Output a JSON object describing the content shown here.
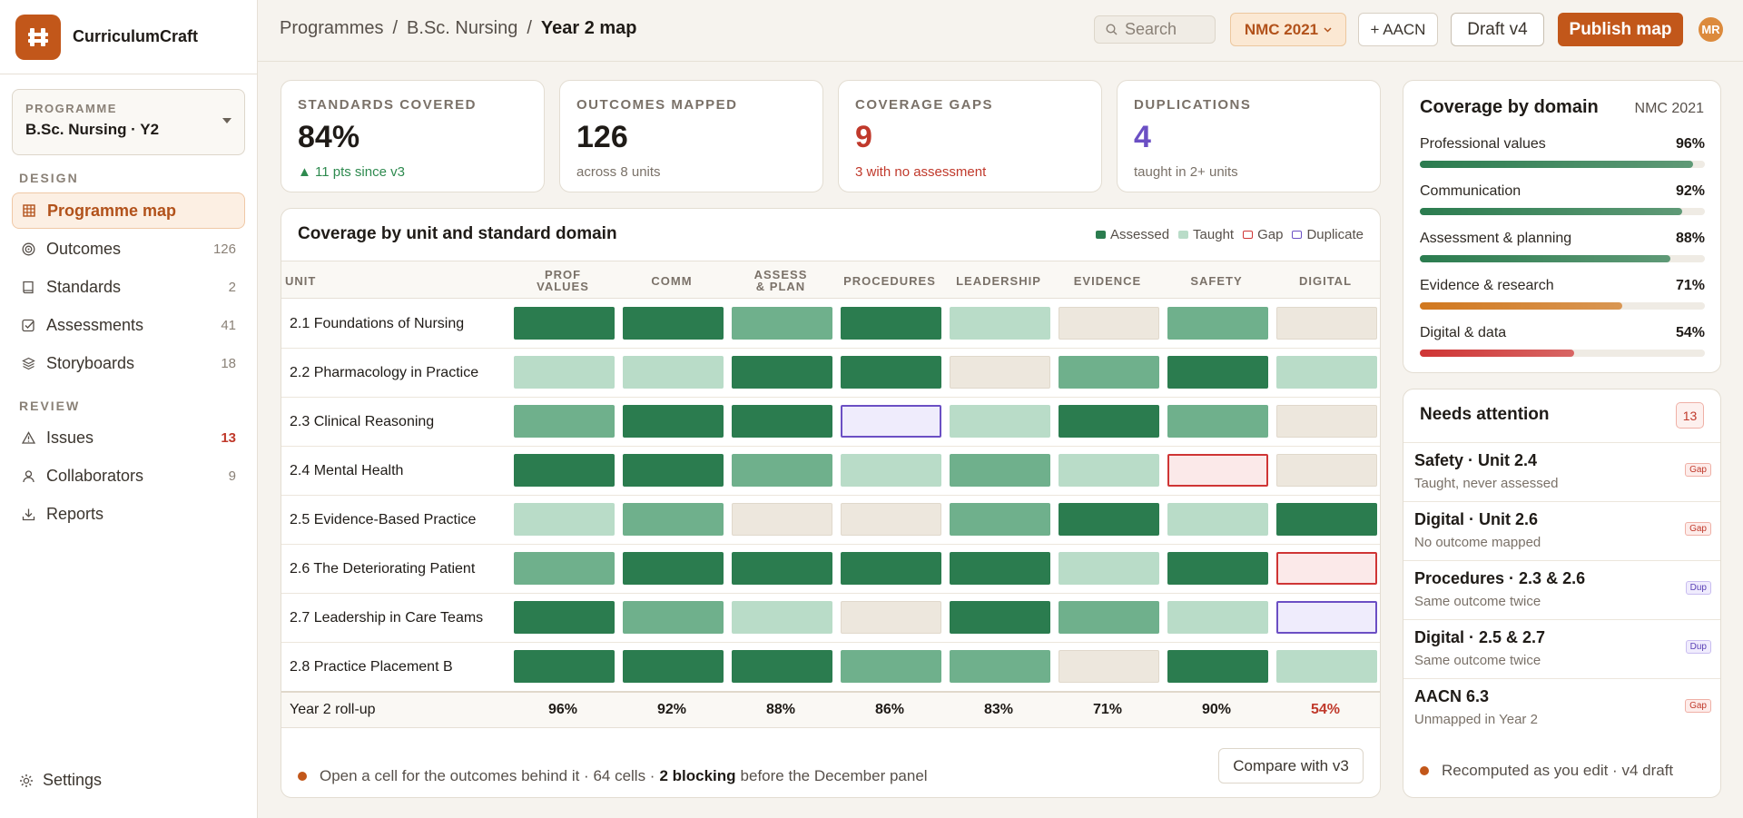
{
  "app": {
    "name": "CurriculumCraft"
  },
  "sidebar": {
    "programme_label": "PROGRAMME",
    "programme_value": "B.Sc. Nursing · Y2",
    "design_label": "DESIGN",
    "review_label": "REVIEW",
    "items": [
      {
        "label": "Programme map",
        "count": "",
        "icon": "grid-icon",
        "active": true
      },
      {
        "label": "Outcomes",
        "count": "126",
        "icon": "target-icon"
      },
      {
        "label": "Standards",
        "count": "2",
        "icon": "book-icon"
      },
      {
        "label": "Assessments",
        "count": "41",
        "icon": "checkbox-icon"
      },
      {
        "label": "Storyboards",
        "count": "18",
        "icon": "layers-icon"
      },
      {
        "label": "Issues",
        "count": "13",
        "icon": "warning-icon"
      },
      {
        "label": "Collaborators",
        "count": "9",
        "icon": "user-icon"
      },
      {
        "label": "Reports",
        "count": "",
        "icon": "download-icon"
      }
    ],
    "settings_label": "Settings"
  },
  "topbar": {
    "breadcrumb": [
      "Programmes",
      "B.Sc. Nursing",
      "Year 2 map"
    ],
    "search_placeholder": "Search",
    "standard_select": "NMC 2021",
    "add_standard": "+ AACN",
    "draft": "Draft v4",
    "publish": "Publish map",
    "avatar": "MR"
  },
  "kpis": [
    {
      "label": "STANDARDS COVERED",
      "value": "84%",
      "sub": "▲ 11 pts since v3",
      "color": "#1f1b17",
      "sub_color": "#2e8a4f"
    },
    {
      "label": "OUTCOMES MAPPED",
      "value": "126",
      "sub": "across 8 units",
      "color": "#1f1b17",
      "sub_color": "#7a7168"
    },
    {
      "label": "COVERAGE GAPS",
      "value": "9",
      "sub": "3 with no assessment",
      "color": "#c0392b",
      "sub_color": "#c0392b"
    },
    {
      "label": "DUPLICATIONS",
      "value": "4",
      "sub": "taught in 2+ units",
      "color": "#6b4fc4",
      "sub_color": "#7a7168"
    }
  ],
  "heatmap": {
    "title": "Coverage by unit and standard domain",
    "legend": [
      {
        "label": "Assessed",
        "color": "#2b7c4f"
      },
      {
        "label": "Taught",
        "color": "#b9dcc8"
      },
      {
        "label": "Gap",
        "color": "#cf3535"
      },
      {
        "label": "Duplicate",
        "color": "#6b4fc4"
      }
    ],
    "unit_header": "UNIT",
    "columns": [
      [
        "PROF",
        "VALUES"
      ],
      [
        "COMM",
        ""
      ],
      [
        "ASSESS",
        "& PLAN"
      ],
      [
        "PROCEDURES",
        ""
      ],
      [
        "LEADERSHIP",
        ""
      ],
      [
        "EVIDENCE",
        ""
      ],
      [
        "SAFETY",
        ""
      ],
      [
        "DIGITAL",
        ""
      ]
    ],
    "rows": [
      {
        "unit": "2.1 Foundations of Nursing",
        "cells": [
          3,
          3,
          2,
          3,
          1,
          0,
          2,
          0
        ]
      },
      {
        "unit": "2.2 Pharmacology in Practice",
        "cells": [
          1,
          1,
          3,
          3,
          0,
          2,
          3,
          1
        ]
      },
      {
        "unit": "2.3 Clinical Reasoning",
        "cells": [
          2,
          3,
          3,
          "dup",
          1,
          3,
          2,
          0
        ]
      },
      {
        "unit": "2.4 Mental Health",
        "cells": [
          3,
          3,
          2,
          1,
          2,
          1,
          "gap",
          0
        ]
      },
      {
        "unit": "2.5 Evidence-Based Practice",
        "cells": [
          1,
          2,
          0,
          0,
          2,
          3,
          1,
          3
        ]
      },
      {
        "unit": "2.6 The Deteriorating Patient",
        "cells": [
          2,
          3,
          3,
          3,
          3,
          1,
          3,
          "gap"
        ]
      },
      {
        "unit": "2.7 Leadership in Care Teams",
        "cells": [
          3,
          2,
          1,
          0,
          3,
          2,
          1,
          "dup"
        ]
      },
      {
        "unit": "2.8 Practice Placement B",
        "cells": [
          3,
          3,
          3,
          2,
          2,
          0,
          3,
          1
        ]
      }
    ],
    "rollup_label": "Year 2 roll-up",
    "rollup": [
      "96%",
      "92%",
      "88%",
      "86%",
      "83%",
      "71%",
      "90%",
      "54%"
    ],
    "footnote_a": "Open a cell for the outcomes behind it · 64 cells · ",
    "footnote_b": "2 blocking",
    "footnote_c": " before the December panel",
    "compare": "Compare with v3"
  },
  "coverage": {
    "title": "Coverage by domain",
    "standard": "NMC 2021",
    "domains": [
      {
        "name": "Professional values",
        "pct": "96%",
        "value": 96,
        "color": "#2b7c4f"
      },
      {
        "name": "Communication",
        "pct": "92%",
        "value": 92,
        "color": "#2b7c4f"
      },
      {
        "name": "Assessment & planning",
        "pct": "88%",
        "value": 88,
        "color": "#2b7c4f"
      },
      {
        "name": "Evidence & research",
        "pct": "71%",
        "value": 71,
        "color": "#d1781f"
      },
      {
        "name": "Digital & data",
        "pct": "54%",
        "value": 54,
        "color": "#cf3535"
      }
    ]
  },
  "attention": {
    "title": "Needs attention",
    "count": "13",
    "items": [
      {
        "title": "Safety · Unit 2.4",
        "sub": "Taught, never assessed",
        "tag": "Gap",
        "kind": "gap"
      },
      {
        "title": "Digital · Unit 2.6",
        "sub": "No outcome mapped",
        "tag": "Gap",
        "kind": "gap"
      },
      {
        "title": "Procedures · 2.3 & 2.6",
        "sub": "Same outcome twice",
        "tag": "Dup",
        "kind": "dup"
      },
      {
        "title": "Digital · 2.5 & 2.7",
        "sub": "Same outcome twice",
        "tag": "Dup",
        "kind": "dup"
      },
      {
        "title": "AACN 6.3",
        "sub": "Unmapped in Year 2",
        "tag": "Gap",
        "kind": "gap"
      }
    ],
    "footer": "Recomputed as you edit · v4 draft"
  }
}
